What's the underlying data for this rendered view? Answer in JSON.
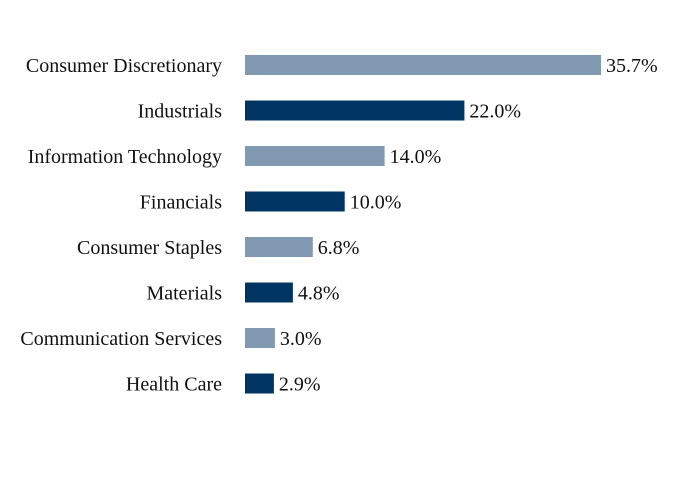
{
  "chart_data": {
    "type": "bar",
    "orientation": "horizontal",
    "categories": [
      "Consumer Discretionary",
      "Industrials",
      "Information Technology",
      "Financials",
      "Consumer Staples",
      "Materials",
      "Communication Services",
      "Health Care"
    ],
    "values": [
      35.7,
      22.0,
      14.0,
      10.0,
      6.8,
      4.8,
      3.0,
      2.9
    ],
    "value_labels": [
      "35.7%",
      "22.0%",
      "14.0%",
      "10.0%",
      "6.8%",
      "4.8%",
      "3.0%",
      "2.9%"
    ],
    "unit": "%",
    "xlim": [
      0,
      35.7
    ],
    "grid": false,
    "legend": "none",
    "colors": {
      "light": "#8199B1",
      "dark": "#003463"
    },
    "bar_colors": [
      "light",
      "dark",
      "light",
      "dark",
      "light",
      "dark",
      "light",
      "dark"
    ]
  }
}
